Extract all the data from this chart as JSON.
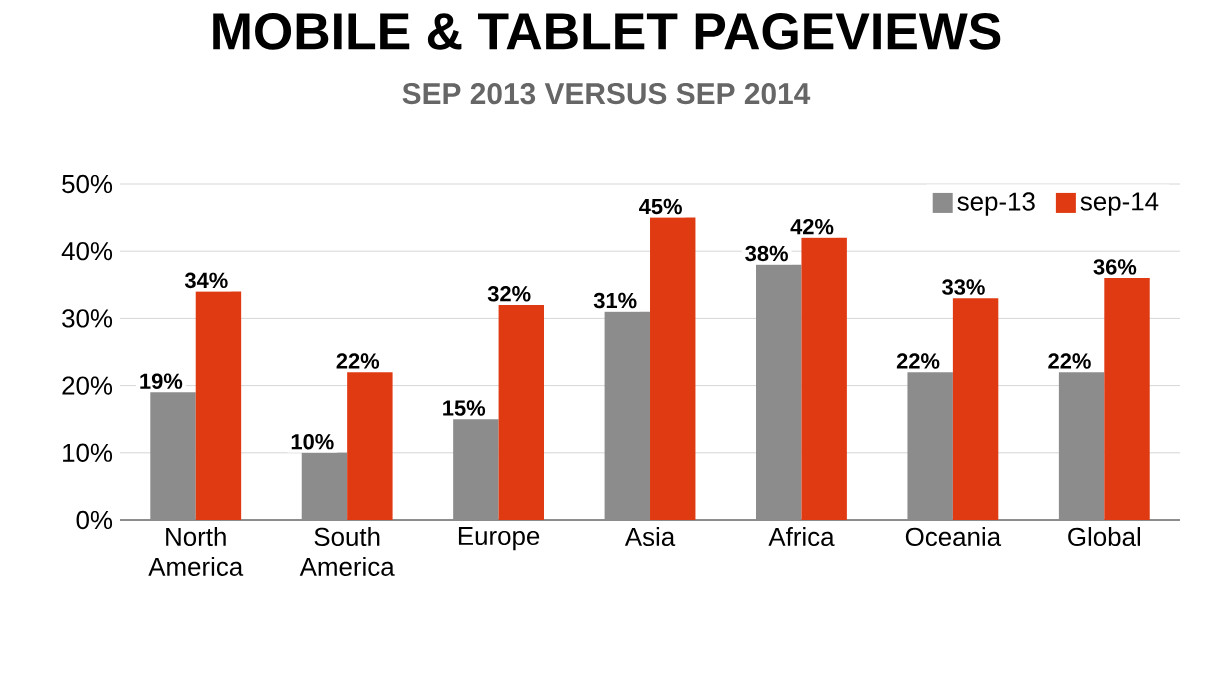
{
  "chart_data": {
    "type": "bar",
    "title": "MOBILE & TABLET PAGEVIEWS",
    "subtitle": "SEP 2013 VERSUS SEP 2014",
    "categories": [
      "North America",
      "South America",
      "Europe",
      "Asia",
      "Africa",
      "Oceania",
      "Global"
    ],
    "series": [
      {
        "name": "sep-13",
        "color": "#8c8c8c",
        "values": [
          19,
          10,
          15,
          31,
          38,
          22,
          22
        ],
        "value_labels": [
          "19%",
          "10%",
          "15%",
          "31%",
          "38%",
          "22%",
          "22%"
        ]
      },
      {
        "name": "sep-14",
        "color": "#e03a12",
        "values": [
          34,
          22,
          32,
          45,
          42,
          33,
          36
        ],
        "value_labels": [
          "34%",
          "22%",
          "32%",
          "45%",
          "42%",
          "33%",
          "36%"
        ]
      }
    ],
    "ylim": [
      0,
      50
    ],
    "yticks": [
      {
        "value": 0,
        "label": "0%"
      },
      {
        "value": 10,
        "label": "10%"
      },
      {
        "value": 20,
        "label": "20%"
      },
      {
        "value": 30,
        "label": "30%"
      },
      {
        "value": 40,
        "label": "40%"
      },
      {
        "value": 50,
        "label": "50%"
      }
    ],
    "grid": "y",
    "legend": "top right"
  }
}
